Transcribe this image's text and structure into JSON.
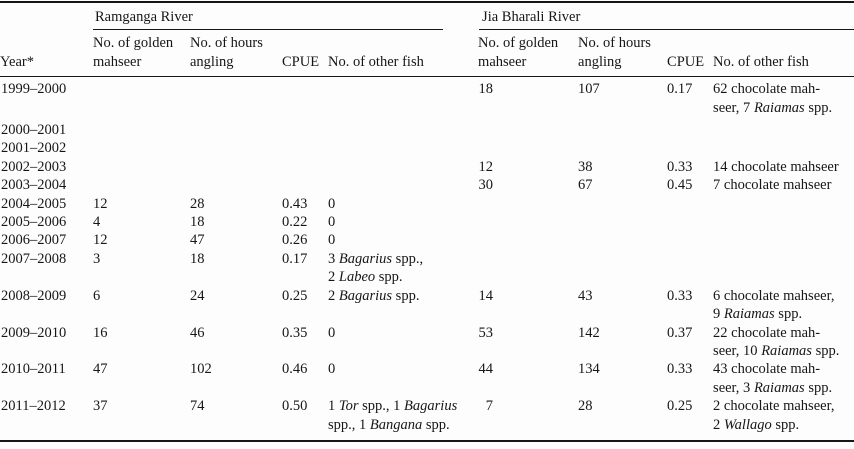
{
  "table": {
    "year_header": "Year*",
    "groups": [
      {
        "name": "Ramganga River",
        "columns": [
          "No. of golden\nmahseer",
          "No. of hours\nangling",
          "CPUE",
          "No. of other fish"
        ]
      },
      {
        "name": "Jia Bharali River",
        "columns": [
          "No. of golden\nmahseer",
          "No. of hours\nangling",
          "CPUE",
          "No. of other fish"
        ]
      }
    ],
    "rows": [
      {
        "year": "1999–2000",
        "ram": [
          "",
          "",
          "",
          ""
        ],
        "jia": [
          "18",
          "107",
          "0.17",
          "62 chocolate mah-\nseer, 7 *Raiamas* spp."
        ]
      },
      {
        "year": "2000–2001",
        "ram": [
          "",
          "",
          "",
          ""
        ],
        "jia": [
          "",
          "",
          "",
          ""
        ]
      },
      {
        "year": "2001–2002",
        "ram": [
          "",
          "",
          "",
          ""
        ],
        "jia": [
          "",
          "",
          "",
          ""
        ]
      },
      {
        "year": "2002–2003",
        "ram": [
          "",
          "",
          "",
          ""
        ],
        "jia": [
          "12",
          "38",
          "0.33",
          "14 chocolate mahseer"
        ]
      },
      {
        "year": "2003–2004",
        "ram": [
          "",
          "",
          "",
          ""
        ],
        "jia": [
          "30",
          "67",
          "0.45",
          "7 chocolate mahseer"
        ]
      },
      {
        "year": "2004–2005",
        "ram": [
          "12",
          "28",
          "0.43",
          "0"
        ],
        "jia": [
          "",
          "",
          "",
          ""
        ]
      },
      {
        "year": "2005–2006",
        "ram": [
          "4",
          "18",
          "0.22",
          "0"
        ],
        "jia": [
          "",
          "",
          "",
          ""
        ]
      },
      {
        "year": "2006–2007",
        "ram": [
          "12",
          "47",
          "0.26",
          "0"
        ],
        "jia": [
          "",
          "",
          "",
          ""
        ]
      },
      {
        "year": "2007–2008",
        "ram": [
          "3",
          "18",
          "0.17",
          "3 *Bagarius* spp.,\n2 *Labeo* spp."
        ],
        "jia": [
          "",
          "",
          "",
          ""
        ]
      },
      {
        "year": "2008–2009",
        "ram": [
          "6",
          "24",
          "0.25",
          "2 *Bagarius* spp."
        ],
        "jia": [
          "14",
          "43",
          "0.33",
          "6 chocolate mahseer,\n9 *Raiamas* spp."
        ]
      },
      {
        "year": "2009–2010",
        "ram": [
          "16",
          "46",
          "0.35",
          "0"
        ],
        "jia": [
          "53",
          "142",
          "0.37",
          "22 chocolate mah-\nseer, 10 *Raiamas* spp."
        ]
      },
      {
        "year": "2010–2011",
        "ram": [
          "47",
          "102",
          "0.46",
          "0"
        ],
        "jia": [
          "44",
          "134",
          "0.33",
          "43 chocolate mah-\nseer, 3 *Raiamas* spp."
        ]
      },
      {
        "year": "2011–2012",
        "ram": [
          "37",
          "74",
          "0.50",
          "1 *Tor* spp., 1 *Bagarius*\nspp., 1 *Bangana* spp."
        ],
        "jia": [
          "7",
          "28",
          "0.25",
          "2 chocolate mahseer,\n2 *Wallago* spp."
        ]
      }
    ],
    "colors": {
      "text": "#161616",
      "rule": "#161616",
      "background": "#fdfdfd"
    }
  }
}
